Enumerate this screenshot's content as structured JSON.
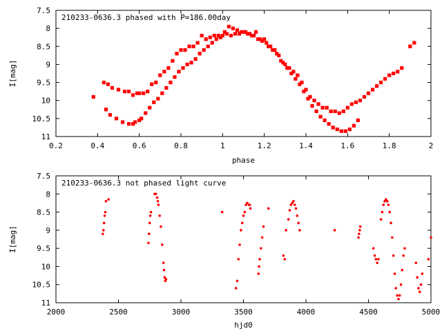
{
  "chart_data": [
    {
      "type": "scatter",
      "title": "210233-0636.3 phased with P=186.00day",
      "xlabel": "phase",
      "ylabel": "I[mag]",
      "xlim": [
        0.2,
        2.0
      ],
      "ylim": [
        7.5,
        11.0
      ],
      "y_inverted": true,
      "xticks": [
        "0.2",
        "0.4",
        "0.6",
        "0.8",
        "1",
        "1.2",
        "1.4",
        "1.6",
        "1.8",
        "2"
      ],
      "yticks": [
        "7.5",
        "8",
        "8.5",
        "9",
        "9.5",
        "10",
        "10.5",
        "11"
      ],
      "grid": false,
      "marker_color": "#ff0000",
      "series": [
        {
          "x": [
            0.38,
            0.43,
            0.45,
            0.47,
            0.5,
            0.53,
            0.55,
            0.57,
            0.59,
            0.6,
            0.62,
            0.64,
            0.66,
            0.68,
            0.7,
            0.72,
            0.74,
            0.76,
            0.78,
            0.8,
            0.82,
            0.84,
            0.86,
            0.88,
            0.9,
            0.92,
            0.94,
            0.96,
            0.98,
            1.0,
            1.02,
            1.04,
            1.06,
            1.08,
            1.1,
            1.12,
            1.14,
            1.16,
            1.18,
            1.2,
            1.22,
            1.24,
            1.26,
            1.28,
            1.3,
            1.32,
            1.34,
            1.36,
            1.38,
            1.4,
            1.42,
            1.44,
            1.46,
            1.48,
            1.5,
            1.52,
            1.54,
            1.56,
            1.58,
            1.6,
            1.62,
            1.64,
            1.66,
            1.68,
            1.7,
            1.72,
            1.74,
            1.76,
            1.78,
            1.8,
            1.82,
            1.84,
            1.86,
            1.9,
            1.92
          ],
          "y": [
            9.9,
            9.5,
            9.55,
            9.65,
            9.7,
            9.75,
            9.75,
            9.85,
            9.8,
            9.8,
            9.8,
            9.75,
            9.55,
            9.5,
            9.3,
            9.2,
            9.1,
            8.9,
            8.7,
            8.6,
            8.6,
            8.5,
            8.5,
            8.4,
            8.2,
            8.3,
            8.25,
            8.2,
            8.2,
            8.2,
            8.15,
            8.2,
            8.15,
            8.15,
            8.1,
            8.15,
            8.2,
            8.1,
            8.3,
            8.3,
            8.5,
            8.6,
            8.7,
            8.9,
            9.0,
            9.1,
            9.2,
            9.3,
            9.5,
            9.7,
            9.9,
            10.0,
            10.1,
            10.2,
            10.2,
            10.3,
            10.3,
            10.35,
            10.3,
            10.2,
            10.1,
            10.05,
            10.0,
            9.9,
            9.8,
            9.7,
            9.6,
            9.5,
            9.4,
            9.3,
            9.25,
            9.2,
            9.1,
            8.5,
            8.4
          ]
        },
        {
          "x": [
            0.44,
            0.46,
            0.49,
            0.52,
            0.55,
            0.57,
            0.58,
            0.6,
            0.61,
            0.63,
            0.65,
            0.67,
            0.69,
            0.71,
            0.73,
            0.75,
            0.77,
            0.79,
            0.81,
            0.83,
            0.85,
            0.87,
            0.89,
            0.91,
            0.93,
            0.95,
            0.97,
            0.99,
            1.01,
            1.03,
            1.05,
            1.07,
            1.09,
            1.11,
            1.13,
            1.15,
            1.17,
            1.19,
            1.21,
            1.23,
            1.25,
            1.27,
            1.29,
            1.31,
            1.33,
            1.35,
            1.37,
            1.39,
            1.41,
            1.43,
            1.45,
            1.47,
            1.49,
            1.51,
            1.53,
            1.55,
            1.57,
            1.59,
            1.61,
            1.63,
            1.65
          ],
          "y": [
            10.25,
            10.4,
            10.5,
            10.6,
            10.65,
            10.65,
            10.6,
            10.55,
            10.5,
            10.35,
            10.2,
            10.05,
            9.95,
            9.8,
            9.65,
            9.5,
            9.35,
            9.2,
            9.1,
            9.0,
            8.95,
            8.85,
            8.7,
            8.6,
            8.5,
            8.4,
            8.3,
            8.25,
            8.1,
            7.95,
            8.0,
            8.05,
            8.1,
            8.1,
            8.15,
            8.2,
            8.3,
            8.35,
            8.4,
            8.5,
            8.6,
            8.75,
            8.95,
            9.1,
            9.25,
            9.4,
            9.55,
            9.75,
            9.95,
            10.15,
            10.3,
            10.45,
            10.55,
            10.65,
            10.75,
            10.8,
            10.85,
            10.85,
            10.8,
            10.7,
            10.55
          ]
        }
      ]
    },
    {
      "type": "scatter",
      "title": "210233-0636.3 not phased light curve",
      "xlabel": "hjd0",
      "ylabel": "I[mag]",
      "xlim": [
        2000,
        5000
      ],
      "ylim": [
        7.5,
        11.0
      ],
      "y_inverted": true,
      "xticks": [
        "2000",
        "2500",
        "3000",
        "3500",
        "4000",
        "4500",
        "5000"
      ],
      "yticks": [
        "7.5",
        "8",
        "8.5",
        "9",
        "9.5",
        "10",
        "10.5",
        "11"
      ],
      "grid": false,
      "marker_color": "#ff0000",
      "series": [
        {
          "x": [
            2375,
            2380,
            2385,
            2390,
            2395,
            2400,
            2420,
            2740,
            2745,
            2750,
            2755,
            2760,
            2790,
            2800,
            2810,
            2815,
            2820,
            2830,
            2840,
            2850,
            2860,
            2865,
            2870,
            2875,
            2880,
            3330,
            3440,
            3450,
            3460,
            3470,
            3480,
            3490,
            3500,
            3510,
            3520,
            3530,
            3545,
            3550,
            3555,
            3620,
            3625,
            3630,
            3640,
            3650,
            3660,
            3700,
            3820,
            3830,
            3840,
            3860,
            3870,
            3880,
            3890,
            3900,
            3910,
            3920,
            3930,
            3940,
            3950,
            4230,
            4420,
            4425,
            4430,
            4435,
            4540,
            4550,
            4560,
            4570,
            4580,
            4600,
            4610,
            4620,
            4630,
            4640,
            4650,
            4660,
            4670,
            4680,
            4690,
            4700,
            4710,
            4720,
            4730,
            4740,
            4750,
            4760,
            4770,
            4780,
            4790,
            4880,
            4890,
            4900,
            4910,
            4920,
            4930,
            4980,
            5000
          ],
          "y": [
            9.1,
            9.0,
            8.8,
            8.6,
            8.5,
            8.2,
            8.15,
            9.35,
            9.1,
            8.8,
            8.6,
            8.5,
            8.0,
            8.0,
            8.1,
            8.2,
            8.3,
            8.6,
            8.9,
            9.4,
            9.9,
            10.1,
            10.3,
            10.4,
            10.35,
            8.5,
            10.6,
            10.4,
            9.8,
            9.4,
            9.0,
            8.8,
            8.6,
            8.5,
            8.3,
            8.25,
            8.3,
            8.3,
            8.4,
            10.2,
            10.0,
            9.8,
            9.5,
            9.2,
            8.9,
            8.4,
            9.7,
            9.8,
            9.0,
            8.7,
            8.45,
            8.3,
            8.25,
            8.2,
            8.3,
            8.4,
            8.6,
            8.8,
            9.0,
            9.0,
            9.2,
            9.1,
            9.0,
            8.9,
            9.5,
            9.7,
            9.8,
            9.9,
            9.8,
            8.7,
            8.5,
            8.3,
            8.2,
            8.15,
            8.2,
            8.3,
            8.5,
            8.8,
            9.2,
            9.7,
            10.2,
            10.6,
            10.8,
            10.9,
            10.8,
            10.5,
            10.1,
            9.7,
            9.5,
            9.9,
            10.3,
            10.6,
            10.7,
            10.5,
            10.2,
            9.8,
            9.2
          ]
        }
      ]
    }
  ]
}
